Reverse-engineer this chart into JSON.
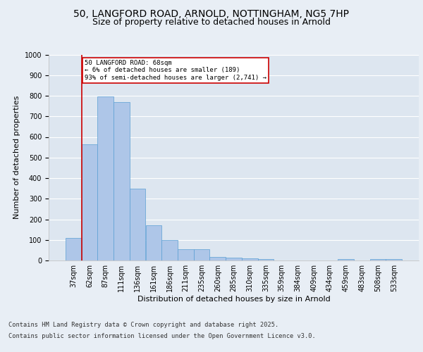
{
  "title_line1": "50, LANGFORD ROAD, ARNOLD, NOTTINGHAM, NG5 7HP",
  "title_line2": "Size of property relative to detached houses in Arnold",
  "xlabel": "Distribution of detached houses by size in Arnold",
  "ylabel": "Number of detached properties",
  "categories": [
    "37sqm",
    "62sqm",
    "87sqm",
    "111sqm",
    "136sqm",
    "161sqm",
    "186sqm",
    "211sqm",
    "235sqm",
    "260sqm",
    "285sqm",
    "310sqm",
    "335sqm",
    "359sqm",
    "384sqm",
    "409sqm",
    "434sqm",
    "459sqm",
    "483sqm",
    "508sqm",
    "533sqm"
  ],
  "values": [
    110,
    565,
    795,
    770,
    350,
    170,
    100,
    55,
    55,
    18,
    13,
    10,
    8,
    0,
    0,
    0,
    0,
    8,
    0,
    8,
    8
  ],
  "bar_color": "#aec6e8",
  "bar_edge_color": "#5a9fd4",
  "bar_linewidth": 0.5,
  "vline_x_index": 1,
  "vline_color": "#cc0000",
  "annotation_text": "50 LANGFORD ROAD: 68sqm\n← 6% of detached houses are smaller (189)\n93% of semi-detached houses are larger (2,741) →",
  "annotation_box_color": "#ffffff",
  "annotation_box_edgecolor": "#cc0000",
  "annotation_fontsize": 6.5,
  "ylim": [
    0,
    1000
  ],
  "yticks": [
    0,
    100,
    200,
    300,
    400,
    500,
    600,
    700,
    800,
    900,
    1000
  ],
  "bg_color": "#dde6f0",
  "fig_bg_color": "#e8eef5",
  "grid_color": "#ffffff",
  "footer_line1": "Contains HM Land Registry data © Crown copyright and database right 2025.",
  "footer_line2": "Contains public sector information licensed under the Open Government Licence v3.0.",
  "footer_fontsize": 6.2,
  "title_fontsize1": 10,
  "title_fontsize2": 9,
  "xlabel_fontsize": 8,
  "ylabel_fontsize": 8,
  "tick_fontsize": 7
}
